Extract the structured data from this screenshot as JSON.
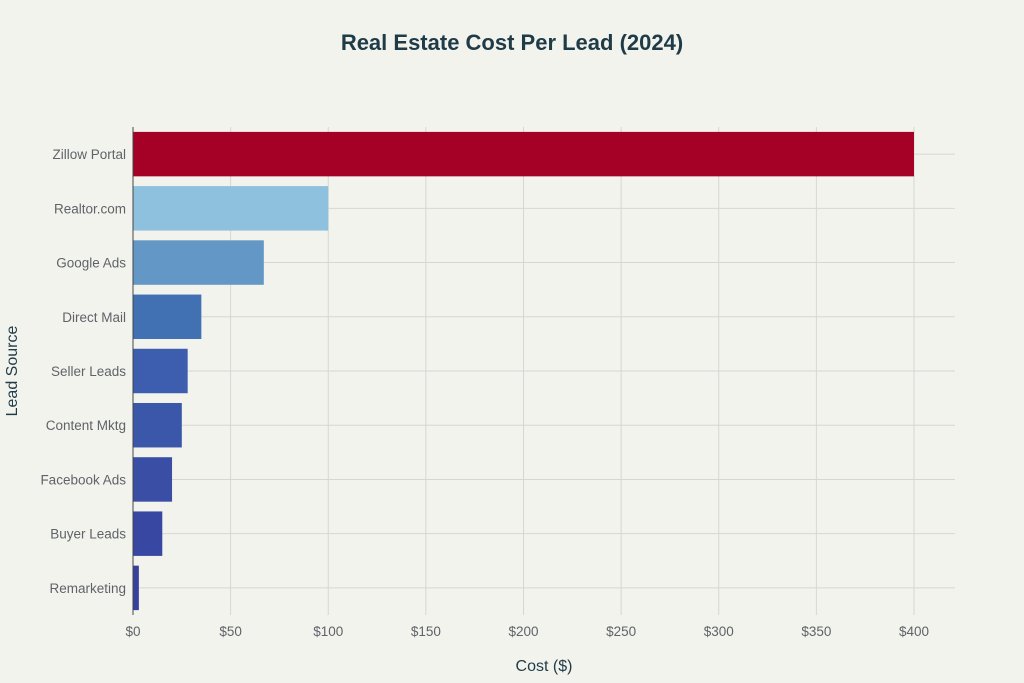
{
  "chart_data": {
    "type": "bar",
    "orientation": "horizontal",
    "title": "Real Estate Cost Per Lead (2024)",
    "xlabel": "Cost ($)",
    "ylabel": "Lead Source",
    "xlim": [
      0,
      420
    ],
    "x_ticks": [
      0,
      50,
      100,
      150,
      200,
      250,
      300,
      350,
      400
    ],
    "x_tick_labels": [
      "$0",
      "$50",
      "$100",
      "$150",
      "$200",
      "$250",
      "$300",
      "$350",
      "$400"
    ],
    "categories": [
      "Zillow Portal",
      "Realtor.com",
      "Google Ads",
      "Direct Mail",
      "Seller Leads",
      "Content Mktg",
      "Facebook Ads",
      "Buyer Leads",
      "Remarketing"
    ],
    "values": [
      400,
      100,
      67,
      35,
      28,
      25,
      20,
      15,
      3
    ],
    "colors": [
      "#a50026",
      "#8ec1de",
      "#6397c6",
      "#4170b3",
      "#3d5eae",
      "#3b57a9",
      "#3a4ea5",
      "#3847a1",
      "#36419d"
    ],
    "grid": true
  }
}
